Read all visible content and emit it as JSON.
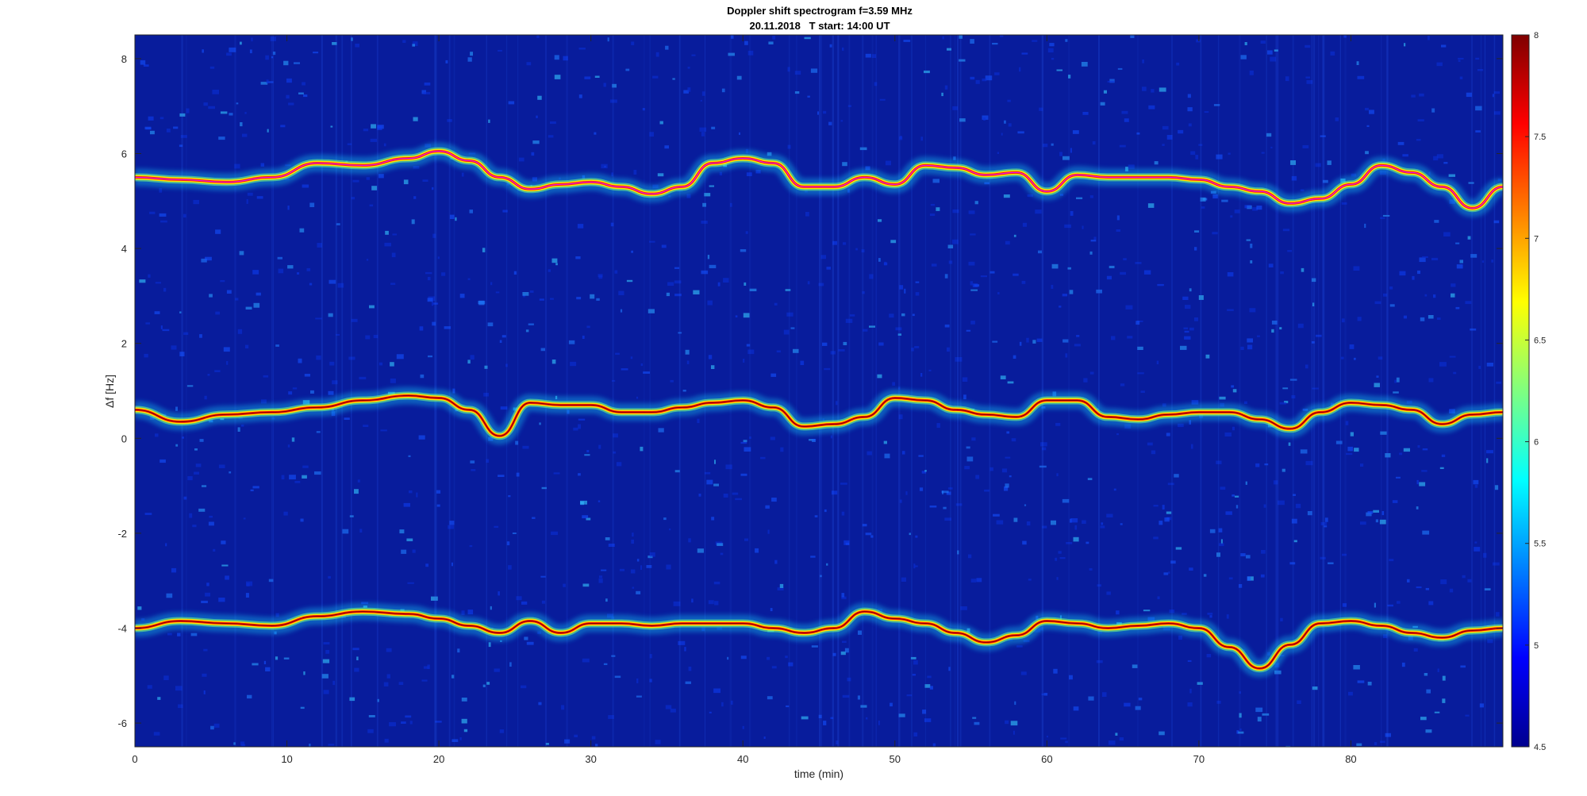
{
  "chart_data": {
    "type": "heatmap",
    "title": "Doppler shift spectrogram f=3.59 MHz",
    "subtitle": "20.11.2018   T start: 14:00 UT",
    "xlabel": "time (min)",
    "ylabel": "Δf [Hz]",
    "xlim": [
      0,
      90
    ],
    "ylim": [
      -6.5,
      8.5
    ],
    "xticks": [
      0,
      10,
      20,
      30,
      40,
      50,
      60,
      70,
      80
    ],
    "yticks": [
      -6,
      -4,
      -2,
      0,
      2,
      4,
      6,
      8
    ],
    "colormap": "jet",
    "colorbar": {
      "range": [
        4.5,
        8
      ],
      "ticks": [
        4.5,
        5,
        5.5,
        6,
        6.5,
        7,
        7.5,
        8
      ],
      "tick_labels": [
        "4.5",
        "5",
        "5.5",
        "6",
        "6.5",
        "7",
        "7.5",
        "8"
      ]
    },
    "series": [
      {
        "x": [
          0,
          3,
          6,
          9,
          12,
          15,
          18,
          20,
          22,
          24,
          26,
          28,
          30,
          32,
          34,
          36,
          38,
          40,
          42,
          44,
          46,
          48,
          50,
          52,
          54,
          56,
          58,
          60,
          62,
          64,
          66,
          68,
          70,
          72,
          74,
          76,
          78,
          80,
          82,
          84,
          86,
          88,
          90
        ],
        "y": [
          5.5,
          5.45,
          5.4,
          5.5,
          5.8,
          5.75,
          5.9,
          6.05,
          5.85,
          5.5,
          5.25,
          5.35,
          5.4,
          5.3,
          5.15,
          5.3,
          5.8,
          5.9,
          5.8,
          5.3,
          5.3,
          5.5,
          5.35,
          5.75,
          5.7,
          5.55,
          5.6,
          5.2,
          5.55,
          5.5,
          5.5,
          5.5,
          5.45,
          5.3,
          5.2,
          4.95,
          5.05,
          5.35,
          5.75,
          5.6,
          5.3,
          4.85,
          5.3
        ]
      },
      {
        "x": [
          0,
          3,
          6,
          9,
          12,
          15,
          18,
          20,
          22,
          24,
          26,
          28,
          30,
          32,
          34,
          36,
          38,
          40,
          42,
          44,
          46,
          48,
          50,
          52,
          54,
          56,
          58,
          60,
          62,
          64,
          66,
          68,
          70,
          72,
          74,
          76,
          78,
          80,
          82,
          84,
          86,
          88,
          90
        ],
        "y": [
          0.6,
          0.35,
          0.5,
          0.55,
          0.65,
          0.8,
          0.9,
          0.85,
          0.6,
          0.05,
          0.75,
          0.7,
          0.7,
          0.55,
          0.55,
          0.65,
          0.75,
          0.8,
          0.65,
          0.25,
          0.3,
          0.45,
          0.85,
          0.8,
          0.6,
          0.5,
          0.45,
          0.8,
          0.8,
          0.45,
          0.4,
          0.5,
          0.55,
          0.55,
          0.4,
          0.2,
          0.55,
          0.75,
          0.7,
          0.6,
          0.3,
          0.5,
          0.55
        ]
      },
      {
        "x": [
          0,
          3,
          6,
          9,
          12,
          15,
          18,
          20,
          22,
          24,
          26,
          28,
          30,
          32,
          34,
          36,
          38,
          40,
          42,
          44,
          46,
          48,
          50,
          52,
          54,
          56,
          58,
          60,
          62,
          64,
          66,
          68,
          70,
          72,
          74,
          76,
          78,
          80,
          82,
          84,
          86,
          88,
          90
        ],
        "y": [
          -4.0,
          -3.85,
          -3.9,
          -3.95,
          -3.75,
          -3.65,
          -3.7,
          -3.8,
          -3.95,
          -4.1,
          -3.85,
          -4.1,
          -3.9,
          -3.9,
          -3.95,
          -3.9,
          -3.9,
          -3.9,
          -4.0,
          -4.1,
          -4.0,
          -3.65,
          -3.8,
          -3.9,
          -4.1,
          -4.3,
          -4.15,
          -3.85,
          -3.9,
          -4.0,
          -3.95,
          -3.9,
          -4.0,
          -4.4,
          -4.85,
          -4.35,
          -3.9,
          -3.85,
          -3.95,
          -4.1,
          -4.2,
          -4.05,
          -4.0
        ]
      }
    ]
  }
}
